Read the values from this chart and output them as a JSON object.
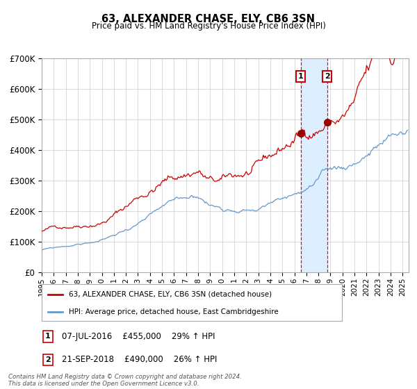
{
  "title": "63, ALEXANDER CHASE, ELY, CB6 3SN",
  "subtitle": "Price paid vs. HM Land Registry's House Price Index (HPI)",
  "ylim": [
    0,
    700000
  ],
  "xlim_start": 1995.0,
  "xlim_end": 2025.5,
  "yticks": [
    0,
    100000,
    200000,
    300000,
    400000,
    500000,
    600000,
    700000
  ],
  "ytick_labels": [
    "£0",
    "£100K",
    "£200K",
    "£300K",
    "£400K",
    "£500K",
    "£600K",
    "£700K"
  ],
  "xticks": [
    1995,
    1996,
    1997,
    1998,
    1999,
    2000,
    2001,
    2002,
    2003,
    2004,
    2005,
    2006,
    2007,
    2008,
    2009,
    2010,
    2011,
    2012,
    2013,
    2014,
    2015,
    2016,
    2017,
    2018,
    2019,
    2020,
    2021,
    2022,
    2023,
    2024,
    2025
  ],
  "red_line_color": "#cc0000",
  "blue_line_color": "#6699cc",
  "dot_color": "#990000",
  "grid_color": "#cccccc",
  "bg_color": "#ffffff",
  "transaction1_x": 2016.52,
  "transaction1_y": 455000,
  "transaction2_x": 2018.72,
  "transaction2_y": 490000,
  "shade_color": "#ddeeff",
  "legend_label_red": "63, ALEXANDER CHASE, ELY, CB6 3SN (detached house)",
  "legend_label_blue": "HPI: Average price, detached house, East Cambridgeshire",
  "table_row1": [
    "1",
    "07-JUL-2016",
    "£455,000",
    "29% ↑ HPI"
  ],
  "table_row2": [
    "2",
    "21-SEP-2018",
    "£490,000",
    "26% ↑ HPI"
  ],
  "footer_text": "Contains HM Land Registry data © Crown copyright and database right 2024.\nThis data is licensed under the Open Government Licence v3.0."
}
